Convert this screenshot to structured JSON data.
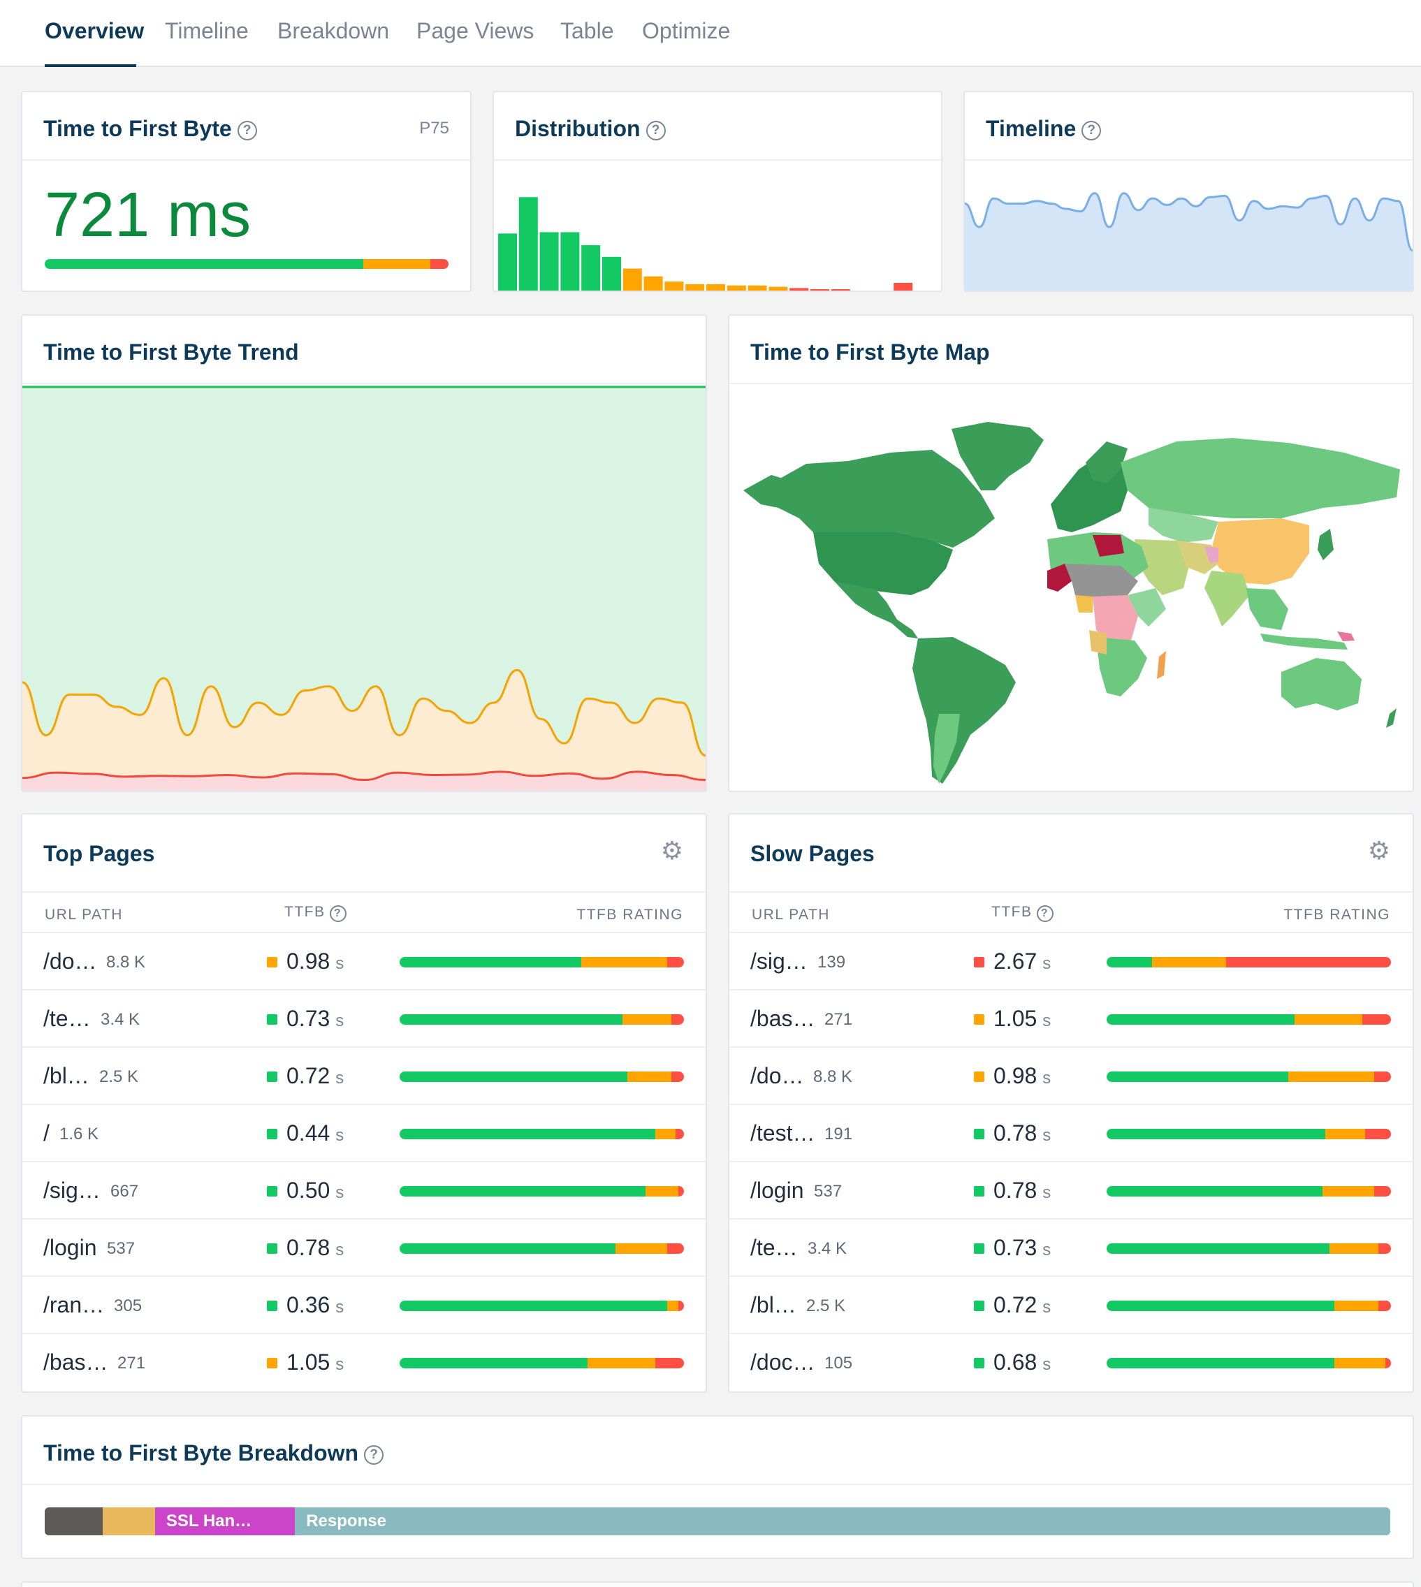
{
  "nav": {
    "tabs": [
      {
        "label": "Overview",
        "active": true
      },
      {
        "label": "Timeline"
      },
      {
        "label": "Breakdown"
      },
      {
        "label": "Page Views"
      },
      {
        "label": "Table"
      },
      {
        "label": "Optimize"
      }
    ]
  },
  "ttfb_card": {
    "title": "Time to First Byte",
    "percentile": "P75",
    "value": "721 ms",
    "rating_split": {
      "good": 0.71,
      "needs_improvement": 0.15,
      "poor": 0.04
    }
  },
  "distribution_card": {
    "title": "Distribution",
    "bars": [
      {
        "value": 0.45,
        "rating": "good"
      },
      {
        "value": 0.73,
        "rating": "good"
      },
      {
        "value": 0.46,
        "rating": "good"
      },
      {
        "value": 0.46,
        "rating": "good"
      },
      {
        "value": 0.36,
        "rating": "good"
      },
      {
        "value": 0.27,
        "rating": "good"
      },
      {
        "value": 0.18,
        "rating": "needs_improvement"
      },
      {
        "value": 0.12,
        "rating": "needs_improvement"
      },
      {
        "value": 0.08,
        "rating": "needs_improvement"
      },
      {
        "value": 0.06,
        "rating": "needs_improvement"
      },
      {
        "value": 0.06,
        "rating": "needs_improvement"
      },
      {
        "value": 0.05,
        "rating": "needs_improvement"
      },
      {
        "value": 0.05,
        "rating": "needs_improvement"
      },
      {
        "value": 0.04,
        "rating": "needs_improvement"
      },
      {
        "value": 0.03,
        "rating": "poor"
      },
      {
        "value": 0.02,
        "rating": "poor"
      },
      {
        "value": 0.02,
        "rating": "poor"
      },
      {
        "value": 0,
        "rating": "poor"
      },
      {
        "value": 0,
        "rating": "poor"
      },
      {
        "value": 0.07,
        "rating": "poor"
      }
    ]
  },
  "timeline_card": {
    "title": "Timeline",
    "series": [
      0.68,
      0.5,
      0.72,
      0.68,
      0.68,
      0.7,
      0.68,
      0.64,
      0.62,
      0.76,
      0.5,
      0.76,
      0.63,
      0.72,
      0.67,
      0.72,
      0.66,
      0.73,
      0.74,
      0.55,
      0.7,
      0.64,
      0.66,
      0.65,
      0.72,
      0.74,
      0.52,
      0.72,
      0.55,
      0.72,
      0.7,
      0.32
    ]
  },
  "trend_card": {
    "title": "Time to First Byte Trend",
    "p75_series": [
      0.27,
      0.14,
      0.24,
      0.24,
      0.21,
      0.19,
      0.28,
      0.14,
      0.26,
      0.16,
      0.22,
      0.19,
      0.25,
      0.26,
      0.2,
      0.26,
      0.14,
      0.23,
      0.2,
      0.17,
      0.22,
      0.3,
      0.18,
      0.12,
      0.23,
      0.22,
      0.17,
      0.23,
      0.22,
      0.09
    ],
    "poor_series": [
      0.035,
      0.048,
      0.045,
      0.038,
      0.04,
      0.039,
      0.042,
      0.036,
      0.046,
      0.044,
      0.03,
      0.048,
      0.042,
      0.043,
      0.05,
      0.04,
      0.046,
      0.033,
      0.05,
      0.042,
      0.03
    ]
  },
  "map_card": {
    "title": "Time to First Byte Map"
  },
  "top_pages": {
    "title": "Top Pages",
    "columns": {
      "url": "URL PATH",
      "ttfb": "TTFB",
      "rating": "TTFB RATING"
    },
    "rows": [
      {
        "url": "/do…",
        "count": "8.8 K",
        "value": "0.98",
        "unit": "s",
        "status": "ni",
        "split": [
          0.64,
          0.3,
          0.06
        ]
      },
      {
        "url": "/te…",
        "count": "3.4 K",
        "value": "0.73",
        "unit": "s",
        "status": "good",
        "split": [
          0.785,
          0.17,
          0.045
        ]
      },
      {
        "url": "/bl…",
        "count": "2.5 K",
        "value": "0.72",
        "unit": "s",
        "status": "good",
        "split": [
          0.8,
          0.155,
          0.045
        ]
      },
      {
        "url": "/",
        "count": "1.6 K",
        "value": "0.44",
        "unit": "s",
        "status": "good",
        "split": [
          0.9,
          0.07,
          0.03
        ]
      },
      {
        "url": "/sig…",
        "count": "667",
        "value": "0.50",
        "unit": "s",
        "status": "good",
        "split": [
          0.865,
          0.115,
          0.02
        ]
      },
      {
        "url": "/login",
        "count": "537",
        "value": "0.78",
        "unit": "s",
        "status": "good",
        "split": [
          0.76,
          0.18,
          0.06
        ]
      },
      {
        "url": "/ran…",
        "count": "305",
        "value": "0.36",
        "unit": "s",
        "status": "good",
        "split": [
          0.94,
          0.04,
          0.02
        ]
      },
      {
        "url": "/bas…",
        "count": "271",
        "value": "1.05",
        "unit": "s",
        "status": "ni",
        "split": [
          0.66,
          0.24,
          0.1
        ]
      }
    ]
  },
  "slow_pages": {
    "title": "Slow Pages",
    "columns": {
      "url": "URL PATH",
      "ttfb": "TTFB",
      "rating": "TTFB RATING"
    },
    "rows": [
      {
        "url": "/sig…",
        "count": "139",
        "value": "2.67",
        "unit": "s",
        "status": "poor",
        "split": [
          0.16,
          0.26,
          0.58
        ]
      },
      {
        "url": "/bas…",
        "count": "271",
        "value": "1.05",
        "unit": "s",
        "status": "ni",
        "split": [
          0.66,
          0.24,
          0.1
        ]
      },
      {
        "url": "/do…",
        "count": "8.8 K",
        "value": "0.98",
        "unit": "s",
        "status": "ni",
        "split": [
          0.64,
          0.3,
          0.06
        ]
      },
      {
        "url": "/test…",
        "count": "191",
        "value": "0.78",
        "unit": "s",
        "status": "good",
        "split": [
          0.77,
          0.14,
          0.09
        ]
      },
      {
        "url": "/login",
        "count": "537",
        "value": "0.78",
        "unit": "s",
        "status": "good",
        "split": [
          0.76,
          0.18,
          0.06
        ]
      },
      {
        "url": "/te…",
        "count": "3.4 K",
        "value": "0.73",
        "unit": "s",
        "status": "good",
        "split": [
          0.785,
          0.17,
          0.045
        ]
      },
      {
        "url": "/bl…",
        "count": "2.5 K",
        "value": "0.72",
        "unit": "s",
        "status": "good",
        "split": [
          0.8,
          0.155,
          0.045
        ]
      },
      {
        "url": "/doc…",
        "count": "105",
        "value": "0.68",
        "unit": "s",
        "status": "good",
        "split": [
          0.8,
          0.18,
          0.02
        ]
      }
    ]
  },
  "breakdown_card": {
    "title": "Time to First Byte Breakdown",
    "segments": [
      {
        "label": "",
        "pct": "",
        "share": 0.043,
        "color": "#5e5a5a"
      },
      {
        "label": "",
        "pct": "",
        "share": 0.039,
        "color": "#e8b95c"
      },
      {
        "label": "SSL Han…",
        "pct": "10%",
        "share": 0.104,
        "color": "#cc44c8"
      },
      {
        "label": "Response",
        "pct": "81%",
        "share": 0.814,
        "color": "#89babf"
      }
    ]
  },
  "colors": {
    "good": "#12c964",
    "needs_improvement": "#ffa400",
    "poor": "#ff4e42",
    "brand": "#0e3a5a",
    "good_value_text": "#0b8a3c",
    "timeline_line": "#79aee8",
    "timeline_fill": "#d5e5f8"
  }
}
